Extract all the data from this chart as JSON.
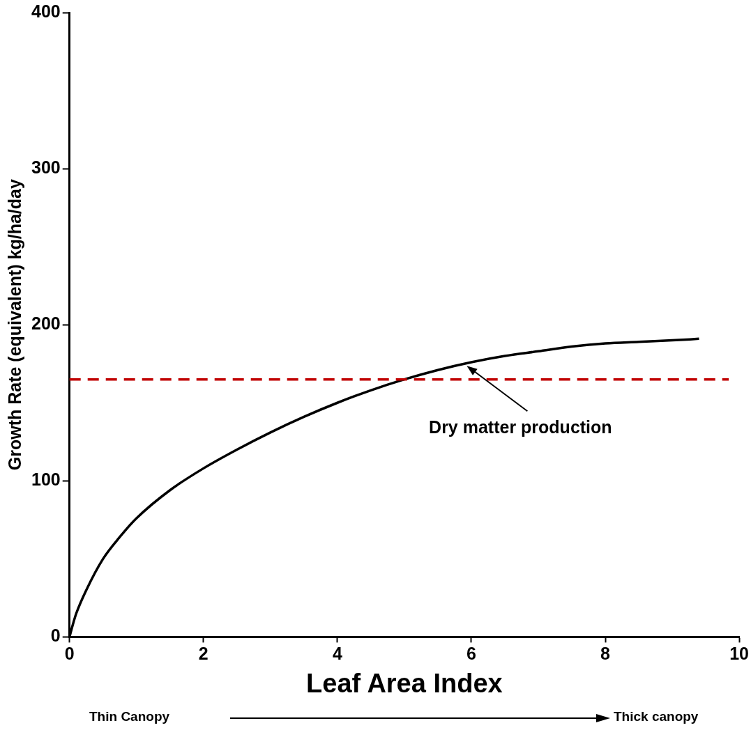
{
  "chart_data": {
    "type": "line",
    "xlabel": "Leaf Area Index",
    "ylabel": "Growth Rate (equivalent) kg/ha/day",
    "xlim": [
      0,
      10
    ],
    "xticks": [
      0,
      2,
      4,
      6,
      8,
      10
    ],
    "ylim": [
      0,
      400
    ],
    "yticks": [
      0,
      100,
      200,
      300,
      400
    ],
    "grid": false,
    "legend": false,
    "marker": "none",
    "line_style": "solid",
    "series": [
      {
        "color": "#000000",
        "x": [
          0,
          0.05,
          0.1,
          0.25,
          0.5,
          0.75,
          1,
          1.5,
          2,
          2.5,
          3,
          3.5,
          4,
          4.5,
          5,
          5.5,
          6,
          6.5,
          7,
          7.5,
          8,
          8.5,
          9,
          9.4
        ],
        "values": [
          0,
          8,
          15,
          30,
          50,
          64,
          76,
          94,
          108,
          120,
          131,
          141,
          150,
          158,
          165,
          171,
          176,
          180,
          183,
          186,
          188,
          189,
          190,
          191
        ]
      }
    ],
    "ref_lines": [
      {
        "axis": "y",
        "value": 165,
        "color": "#c00000",
        "line_style": "dashed"
      }
    ],
    "annotations": [
      {
        "text": "Dry matter production",
        "x": 5.9,
        "y": 175
      },
      "Thin Canopy",
      "Thick canopy"
    ]
  }
}
